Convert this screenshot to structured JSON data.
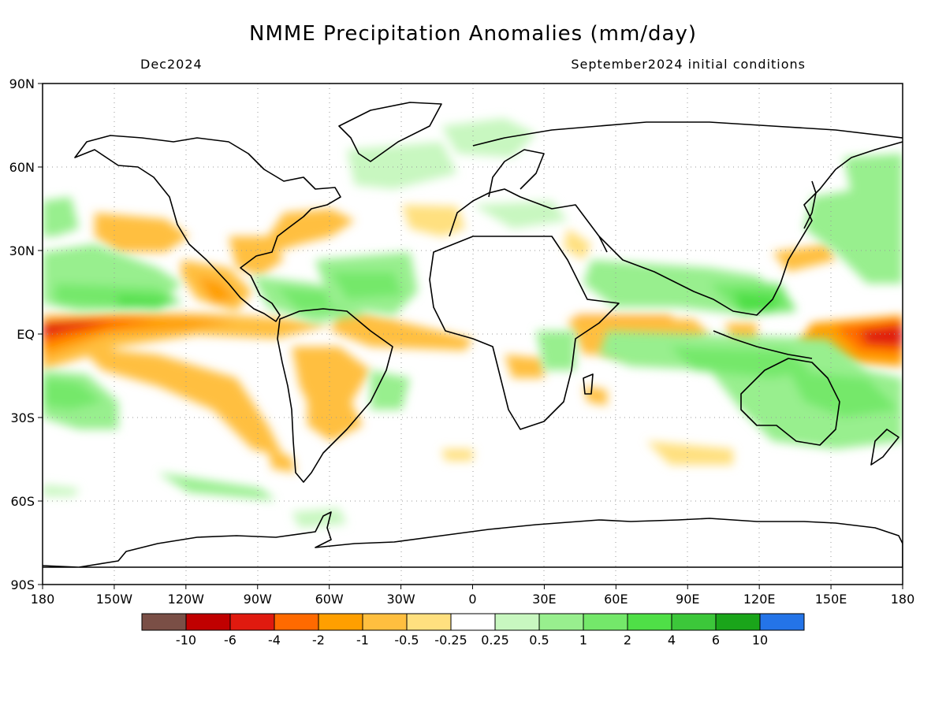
{
  "title": "NMME Precipitation Anomalies (mm/day)",
  "valid_month": "Dec2024",
  "initial_conditions": "September2024 initial conditions",
  "axes": {
    "x_ticks": [
      "180",
      "150W",
      "120W",
      "90W",
      "60W",
      "30W",
      "0",
      "30E",
      "60E",
      "90E",
      "120E",
      "150E",
      "180"
    ],
    "y_ticks": [
      "90N",
      "60N",
      "30N",
      "EQ",
      "30S",
      "60S",
      "90S"
    ]
  },
  "colorbar": {
    "colors": [
      "#7a4f46",
      "#c00000",
      "#e01a0f",
      "#ff6a00",
      "#ff9f00",
      "#ffbf3f",
      "#ffe07f",
      "#ffffff",
      "#c8f7c0",
      "#98ef8e",
      "#74e86a",
      "#4fdf47",
      "#3cc73a",
      "#1aa51a",
      "#2474e8"
    ],
    "labels": [
      "-10",
      "-6",
      "-4",
      "-2",
      "-1",
      "-0.5",
      "-0.25",
      "0.25",
      "0.5",
      "1",
      "2",
      "4",
      "6",
      "10"
    ]
  },
  "chart_data": {
    "type": "heatmap",
    "variable": "precipitation anomaly",
    "units": "mm/day",
    "projection": "equirectangular",
    "lon_range": [
      -180,
      180
    ],
    "lat_range": [
      -90,
      90
    ],
    "gridlines": true,
    "levels": [
      -10,
      -6,
      -4,
      -2,
      -1,
      -0.5,
      -0.25,
      0.25,
      0.5,
      1,
      2,
      4,
      6,
      10
    ],
    "features": [
      {
        "lon": -160,
        "lat": 4,
        "anomaly": -4
      },
      {
        "lon": -175,
        "lat": 2,
        "anomaly": -6
      },
      {
        "lon": -120,
        "lat": 0,
        "anomaly": -2
      },
      {
        "lon": -100,
        "lat": 3,
        "anomaly": -1
      },
      {
        "lon": -140,
        "lat": 12,
        "anomaly": 2
      },
      {
        "lon": -150,
        "lat": 25,
        "anomaly": 1
      },
      {
        "lon": -150,
        "lat": -20,
        "anomaly": 1
      },
      {
        "lon": -130,
        "lat": -15,
        "anomaly": -1
      },
      {
        "lon": -145,
        "lat": 35,
        "anomaly": -1
      },
      {
        "lon": -105,
        "lat": 22,
        "anomaly": -1
      },
      {
        "lon": -70,
        "lat": 38,
        "anomaly": -1
      },
      {
        "lon": -55,
        "lat": 38,
        "anomaly": -1
      },
      {
        "lon": -40,
        "lat": 15,
        "anomaly": 1
      },
      {
        "lon": -50,
        "lat": 3,
        "anomaly": -1
      },
      {
        "lon": -65,
        "lat": 5,
        "anomaly": 1
      },
      {
        "lon": -55,
        "lat": -15,
        "anomaly": -0.5
      },
      {
        "lon": -50,
        "lat": -30,
        "anomaly": -1
      },
      {
        "lon": -30,
        "lat": 5,
        "anomaly": -0.5
      },
      {
        "lon": -25,
        "lat": 33,
        "anomaly": -0.5
      },
      {
        "lon": 20,
        "lat": -10,
        "anomaly": -0.5
      },
      {
        "lon": 60,
        "lat": 0,
        "anomaly": -1
      },
      {
        "lon": 85,
        "lat": -5,
        "anomaly": 1
      },
      {
        "lon": 105,
        "lat": 15,
        "anomaly": 1
      },
      {
        "lon": 125,
        "lat": 10,
        "anomaly": 2
      },
      {
        "lon": 170,
        "lat": 0,
        "anomaly": -6
      },
      {
        "lon": 160,
        "lat": -2,
        "anomaly": -2
      },
      {
        "lon": 140,
        "lat": -20,
        "anomaly": 1
      },
      {
        "lon": 165,
        "lat": 40,
        "anomaly": 1
      },
      {
        "lon": 140,
        "lat": 25,
        "anomaly": -0.5
      },
      {
        "lon": 75,
        "lat": -35,
        "anomaly": -0.5
      },
      {
        "lon": -130,
        "lat": -52,
        "anomaly": 0.5
      },
      {
        "lon": 0,
        "lat": 62,
        "anomaly": 0.5
      }
    ]
  }
}
